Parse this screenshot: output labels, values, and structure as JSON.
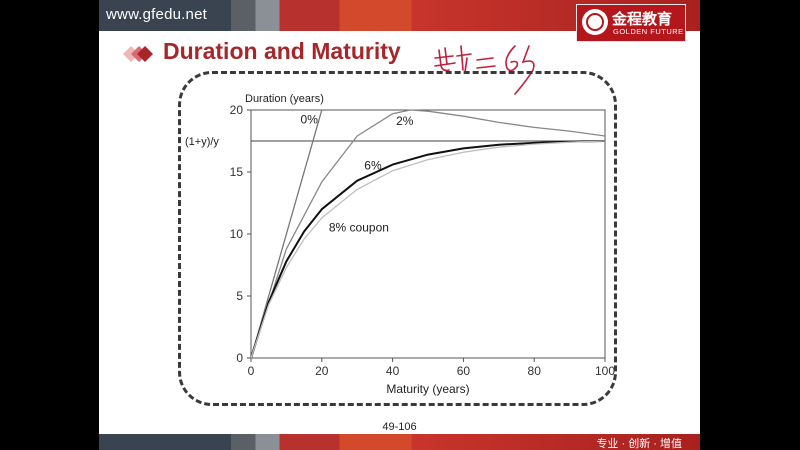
{
  "header": {
    "site_url": "www.gfedu.net",
    "logo_cn": "金程教育",
    "logo_en": "GOLDEN FUTURE"
  },
  "slide": {
    "title": "Duration and Maturity",
    "page_number": "49-106"
  },
  "footer": {
    "slogan": "专业 · 创新 · 增值"
  },
  "colors": {
    "brand_red": "#b5161c",
    "title_red": "#a6262a",
    "frame": "#3a3a3a"
  },
  "chart_data": {
    "type": "line",
    "ylabel": "Duration (years)",
    "xlabel": "Maturity (years)",
    "xlim": [
      0,
      100
    ],
    "ylim": [
      0,
      20
    ],
    "x_ticks": [
      0,
      20,
      40,
      60,
      80,
      100
    ],
    "y_ticks": [
      0,
      5,
      10,
      15,
      20
    ],
    "asymptote": {
      "label": "(1+y)/y",
      "value": 17.5
    },
    "grid": false,
    "series": [
      {
        "name": "0%",
        "x": [
          0,
          20
        ],
        "y": [
          0,
          20
        ]
      },
      {
        "name": "2%",
        "x": [
          0,
          10,
          20,
          30,
          40,
          45,
          50,
          60,
          70,
          80,
          90,
          100
        ],
        "y": [
          0,
          8.8,
          14.2,
          17.9,
          19.7,
          20.0,
          19.9,
          19.5,
          19.0,
          18.6,
          18.3,
          17.9
        ]
      },
      {
        "name": "6%",
        "x": [
          0,
          5,
          10,
          15,
          20,
          30,
          40,
          50,
          60,
          70,
          80,
          90,
          100
        ],
        "y": [
          0,
          4.5,
          7.8,
          10.2,
          12.0,
          14.3,
          15.6,
          16.4,
          16.9,
          17.2,
          17.35,
          17.45,
          17.5
        ]
      },
      {
        "name": "8% coupon",
        "x": [
          0,
          5,
          10,
          15,
          20,
          30,
          40,
          50,
          60,
          70,
          80,
          90,
          100
        ],
        "y": [
          0,
          4.3,
          7.3,
          9.6,
          11.3,
          13.6,
          15.1,
          16.0,
          16.6,
          17.0,
          17.25,
          17.4,
          17.5
        ]
      }
    ]
  }
}
